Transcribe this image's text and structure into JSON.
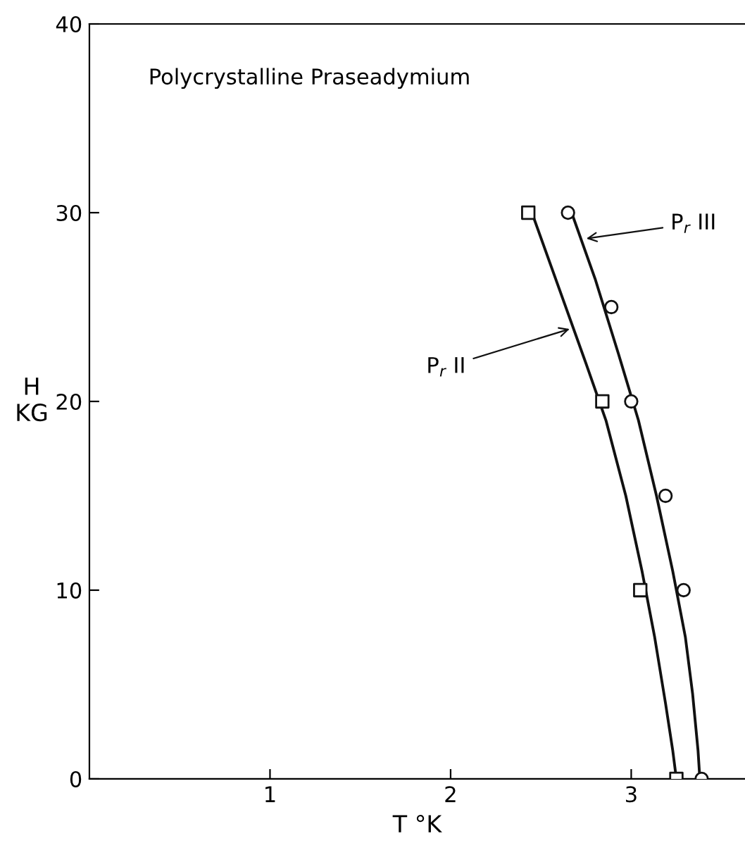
{
  "chart_data": {
    "type": "scatter",
    "title": "Polycrystalline Praseadymium",
    "xlabel": "T °K",
    "ylabel": "H\nKG",
    "xlim": [
      0,
      3.63
    ],
    "ylim": [
      0,
      40
    ],
    "xticks": [
      1,
      2,
      3
    ],
    "yticks": [
      0,
      10,
      20,
      30,
      40
    ],
    "grid": false,
    "legend": false,
    "series": [
      {
        "marker": "square",
        "color": "#111111",
        "x": [
          2.43,
          2.84,
          3.05,
          3.25
        ],
        "values": [
          30,
          20,
          10,
          0
        ]
      },
      {
        "marker": "circle",
        "color": "#111111",
        "x": [
          2.65,
          2.89,
          3.0,
          3.19,
          3.29,
          3.39
        ],
        "values": [
          30,
          25,
          20,
          15,
          10,
          0
        ]
      },
      {
        "type": "line",
        "marker": "none",
        "color": "#111111",
        "x": [
          2.45,
          2.6,
          2.75,
          2.86,
          2.97,
          3.06,
          3.13,
          3.19,
          3.23,
          3.25
        ],
        "values": [
          30,
          26,
          22,
          19,
          15,
          11,
          7.5,
          4,
          1.5,
          0
        ]
      },
      {
        "type": "line",
        "marker": "none",
        "color": "#111111",
        "x": [
          2.67,
          2.8,
          2.93,
          3.04,
          3.14,
          3.23,
          3.3,
          3.34,
          3.37,
          3.38
        ],
        "values": [
          30,
          26.5,
          22.5,
          19,
          15,
          11,
          7.5,
          4.5,
          1.5,
          0
        ]
      }
    ],
    "annotations": [
      {
        "text": "P$_{r}$ II",
        "x": 2.68,
        "y": 23.9
      },
      {
        "text": "P$_{r}$ III",
        "x": 2.73,
        "y": 28.6
      }
    ]
  }
}
